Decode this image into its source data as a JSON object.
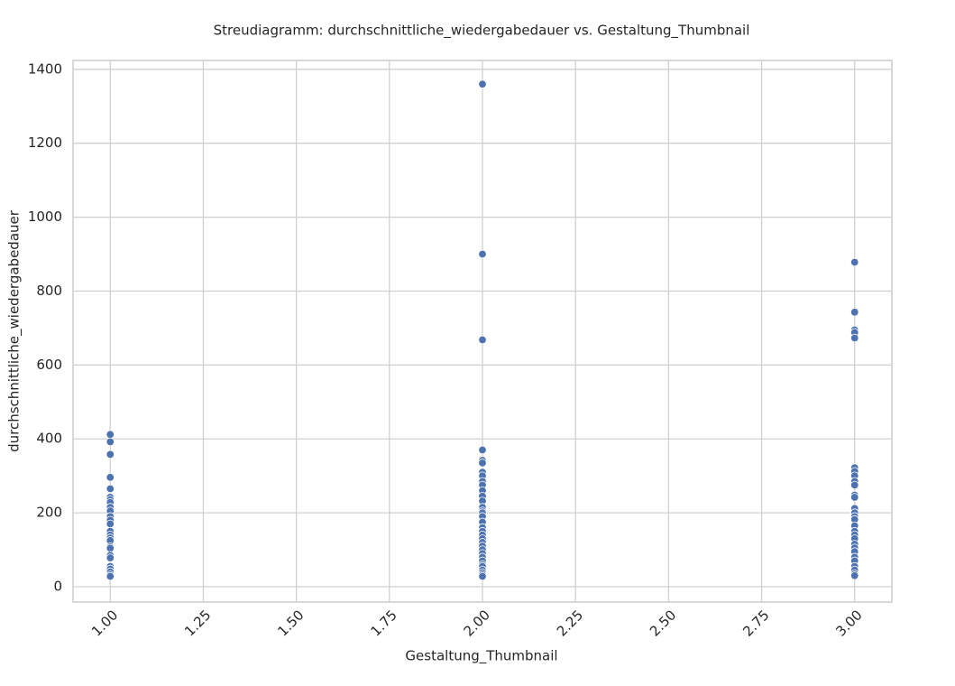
{
  "chart_data": {
    "type": "scatter",
    "title": "Streudiagramm: durchschnittliche_wiedergabedauer vs. Gestaltung_Thumbnail",
    "xlabel": "Gestaltung_Thumbnail",
    "ylabel": "durchschnittliche_wiedergabedauer",
    "color": "#4c72b0",
    "grid": true,
    "x": [
      1,
      1,
      1,
      1,
      1,
      1,
      1,
      1,
      1,
      1,
      1,
      1,
      1,
      1,
      1,
      1,
      1,
      1,
      1,
      1,
      1,
      1,
      1,
      1,
      1,
      1,
      2,
      2,
      2,
      2,
      2,
      2,
      2,
      2,
      2,
      2,
      2,
      2,
      2,
      2,
      2,
      2,
      2,
      2,
      2,
      2,
      2,
      2,
      2,
      2,
      2,
      2,
      2,
      2,
      2,
      2,
      2,
      2,
      2,
      2,
      3,
      3,
      3,
      3,
      3,
      3,
      3,
      3,
      3,
      3,
      3,
      3,
      3,
      3,
      3,
      3,
      3,
      3,
      3,
      3,
      3,
      3,
      3,
      3,
      3,
      3,
      3,
      3,
      3
    ],
    "values": [
      412,
      392,
      358,
      296,
      265,
      242,
      235,
      228,
      215,
      205,
      190,
      180,
      170,
      150,
      140,
      132,
      125,
      108,
      104,
      85,
      78,
      55,
      48,
      40,
      32,
      28,
      1360,
      900,
      668,
      370,
      342,
      335,
      310,
      300,
      285,
      275,
      260,
      245,
      232,
      215,
      205,
      200,
      190,
      175,
      160,
      150,
      140,
      130,
      120,
      110,
      100,
      90,
      80,
      70,
      60,
      55,
      45,
      38,
      32,
      28,
      878,
      743,
      695,
      688,
      673,
      322,
      312,
      300,
      285,
      275,
      248,
      242,
      212,
      200,
      190,
      182,
      165,
      150,
      140,
      130,
      115,
      105,
      95,
      80,
      70,
      55,
      45,
      35,
      30
    ],
    "xlim": [
      0.9,
      3.1
    ],
    "xticks": [
      {
        "value": 1,
        "label": "1.00"
      },
      {
        "value": 1.25,
        "label": "1.25"
      },
      {
        "value": 1.5,
        "label": "1.50"
      },
      {
        "value": 1.75,
        "label": "1.75"
      },
      {
        "value": 2,
        "label": "2.00"
      },
      {
        "value": 2.25,
        "label": "2.25"
      },
      {
        "value": 2.5,
        "label": "2.50"
      },
      {
        "value": 2.75,
        "label": "2.75"
      },
      {
        "value": 3,
        "label": "3.00"
      }
    ],
    "ylim": [
      -41.5,
      1424
    ],
    "yticks": [
      0,
      200,
      400,
      600,
      800,
      1000,
      1200,
      1400
    ]
  }
}
